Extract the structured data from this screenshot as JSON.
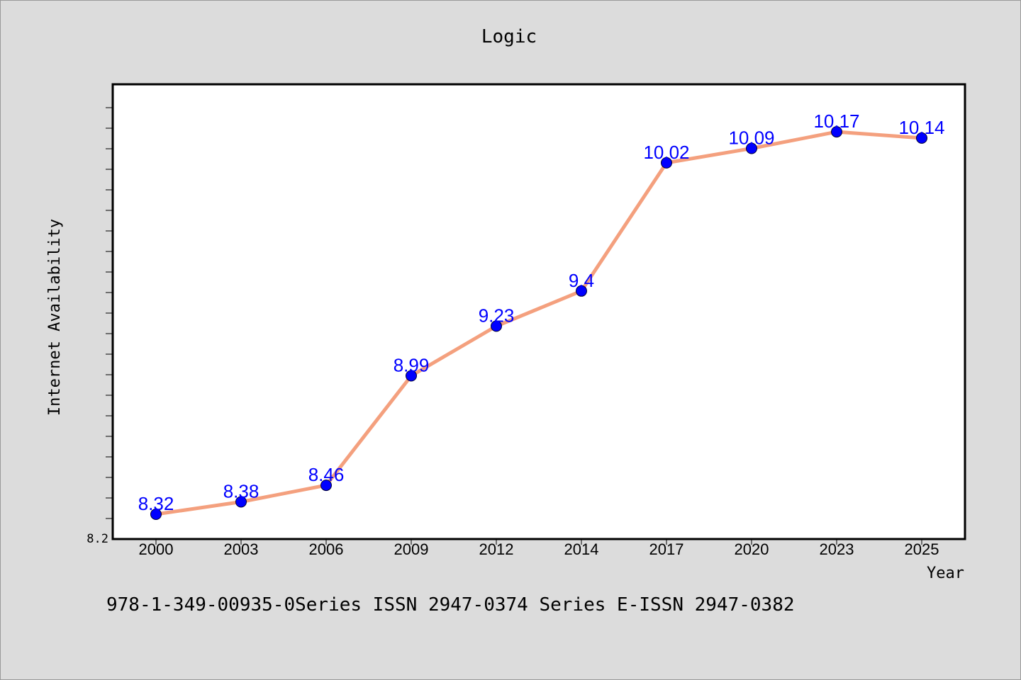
{
  "chart_data": {
    "type": "line",
    "title": "Logic",
    "xlabel": "Year",
    "ylabel": "Internet Availability",
    "categories": [
      "2000",
      "2003",
      "2006",
      "2009",
      "2012",
      "2014",
      "2017",
      "2020",
      "2023",
      "2025"
    ],
    "series": [
      {
        "values": [
          8.32,
          8.38,
          8.46,
          8.99,
          9.23,
          9.4,
          10.02,
          10.09,
          10.17,
          10.14
        ],
        "labels": [
          "8.32",
          "8.38",
          "8.46",
          "8.99",
          "9.23",
          "9.4",
          "10.02",
          "10.09",
          "10.17",
          "10.14"
        ]
      }
    ],
    "y_tick_labels": [
      "8.2"
    ],
    "ylim": [
      8.2,
      10.4
    ],
    "grid": false,
    "colors": {
      "line": "#f4a07e",
      "marker": "#0000ff",
      "data_label": "#0000ff",
      "plot_background": "#ffffff",
      "page_background": "#dcdcdc"
    }
  },
  "footer_text": "978-1-349-00935-0Series ISSN 2947-0374 Series E-ISSN 2947-0382"
}
